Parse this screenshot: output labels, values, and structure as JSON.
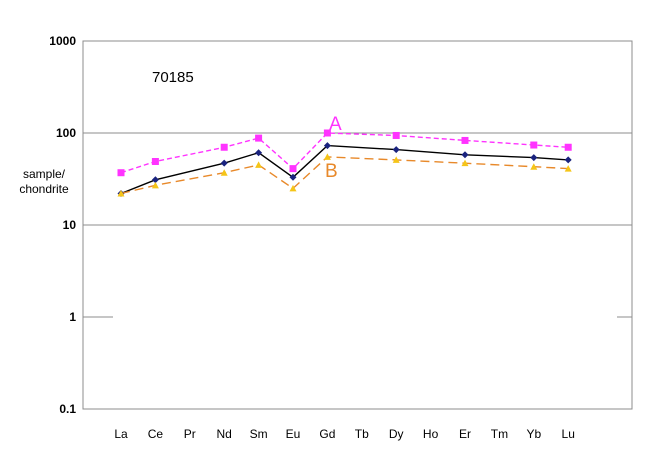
{
  "heading": "",
  "chart_data": {
    "type": "line",
    "title": "70185",
    "ylabel": [
      "sample/",
      "chondrite"
    ],
    "xlabel": "",
    "y_scale": "log",
    "ylim": [
      0.1,
      1000
    ],
    "y_ticks": [
      0.1,
      1,
      10,
      100,
      1000
    ],
    "y_tick_labels": [
      "0.1",
      "1",
      "10",
      "100",
      "1000"
    ],
    "categories": [
      "La",
      "Ce",
      "Pr",
      "Nd",
      "Sm",
      "Eu",
      "Gd",
      "Tb",
      "Dy",
      "Ho",
      "Er",
      "Tm",
      "Yb",
      "Lu"
    ],
    "grid": "horizontal at 10 and 100",
    "series": [
      {
        "name": "A",
        "color": "#ff33ff",
        "line": "dashed",
        "marker": "square",
        "values": {
          "La": 37,
          "Ce": 49,
          "Nd": 70,
          "Sm": 88,
          "Eu": 41,
          "Gd": 100,
          "Dy": 94,
          "Er": 83,
          "Yb": 74,
          "Lu": 70
        }
      },
      {
        "name": "",
        "color": "#000000",
        "line": "solid",
        "marker": "diamond",
        "values": {
          "La": 22,
          "Ce": 31,
          "Nd": 47,
          "Sm": 61,
          "Eu": 33,
          "Gd": 73,
          "Dy": 66,
          "Er": 58,
          "Yb": 54,
          "Lu": 51
        }
      },
      {
        "name": "B",
        "color": "#e8892a",
        "line": "dashed",
        "marker": "triangle",
        "values": {
          "La": 22,
          "Ce": 27,
          "Nd": 37,
          "Sm": 45,
          "Eu": 25,
          "Gd": 55,
          "Dy": 51,
          "Er": 47,
          "Yb": 43,
          "Lu": 41
        }
      }
    ]
  }
}
